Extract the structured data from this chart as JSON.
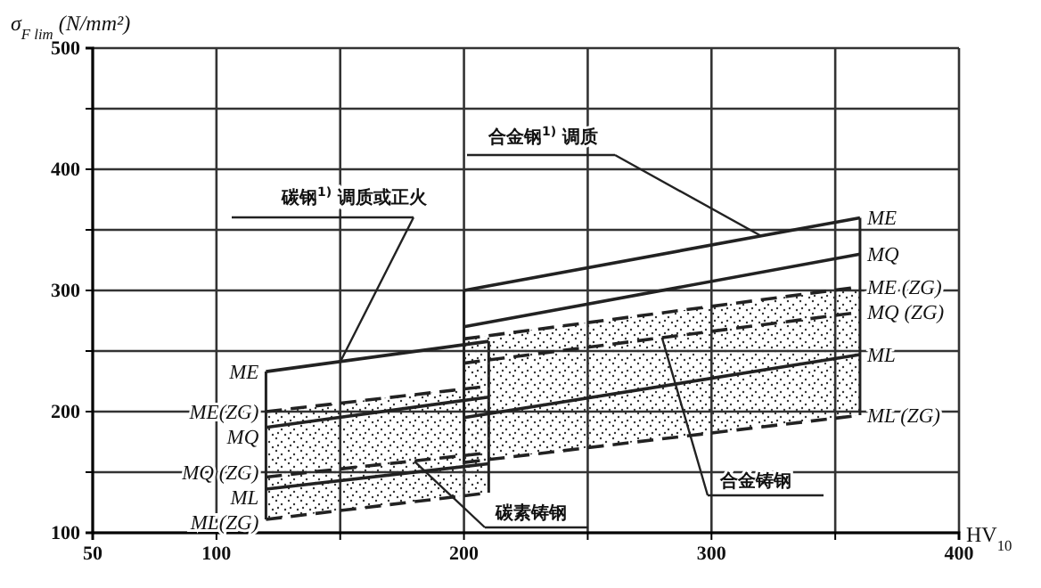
{
  "chart_data": {
    "type": "line",
    "ylabel": "σ$_{F lim}$ (N/mm²)",
    "xlabel": "HV$_{10}$",
    "xlim": [
      50,
      400
    ],
    "ylim": [
      100,
      500
    ],
    "xticks": [
      50,
      100,
      {
        "value": 150,
        "label": null
      },
      200,
      {
        "value": 250,
        "label": null
      },
      300,
      {
        "value": 350,
        "label": null
      },
      400
    ],
    "yticks": [
      100,
      {
        "value": 150,
        "label": null
      },
      200,
      {
        "value": 250,
        "label": null
      },
      300,
      {
        "value": 350,
        "label": null
      },
      400,
      {
        "value": 450,
        "label": null
      },
      500
    ],
    "grid": true,
    "marker": "none",
    "series": [
      {
        "name": "ME",
        "color": "#222222",
        "x": [
          120,
          210
        ],
        "values": [
          233,
          258
        ]
      },
      {
        "name": "ME(ZG)",
        "color": "#222222",
        "x": [
          120,
          210
        ],
        "values": [
          200,
          221
        ],
        "line_style": "dashed"
      },
      {
        "name": "MQ",
        "color": "#222222",
        "x": [
          120,
          210
        ],
        "values": [
          187,
          212
        ]
      },
      {
        "name": "MQ (ZG)",
        "color": "#222222",
        "x": [
          120,
          210
        ],
        "values": [
          146,
          166
        ],
        "line_style": "dashed"
      },
      {
        "name": "ML",
        "color": "#222222",
        "x": [
          120,
          210
        ],
        "values": [
          136,
          157
        ]
      },
      {
        "name": "ML(ZG)",
        "color": "#222222",
        "x": [
          120,
          210
        ],
        "values": [
          111,
          133
        ],
        "line_style": "dashed"
      },
      {
        "name": "ME",
        "color": "#222222",
        "x": [
          200,
          360
        ],
        "values": [
          300,
          360
        ]
      },
      {
        "name": "MQ",
        "color": "#222222",
        "x": [
          200,
          360
        ],
        "values": [
          270,
          330
        ]
      },
      {
        "name": "ME (ZG)",
        "color": "#222222",
        "x": [
          200,
          360
        ],
        "values": [
          260,
          303
        ],
        "line_style": "dashed"
      },
      {
        "name": "MQ (ZG)",
        "color": "#222222",
        "x": [
          200,
          360
        ],
        "values": [
          240,
          282
        ],
        "line_style": "dashed"
      },
      {
        "name": "ML",
        "color": "#222222",
        "x": [
          200,
          360
        ],
        "values": [
          195,
          247
        ]
      },
      {
        "name": "ML (ZG)",
        "color": "#222222",
        "x": [
          200,
          360
        ],
        "values": [
          158,
          197
        ],
        "line_style": "dashed"
      }
    ],
    "annotations": [
      {
        "text": "碳钢$^{1)}$ 调质或正火",
        "x": 150,
        "y": 241
      },
      {
        "text": "合金钢$^{1)}$ 调质",
        "x": 320,
        "y": 345
      },
      {
        "text": "碳素铸钢",
        "x": 180,
        "y": 159
      },
      {
        "text": "合金铸钢",
        "x": 280,
        "y": 261
      }
    ]
  }
}
